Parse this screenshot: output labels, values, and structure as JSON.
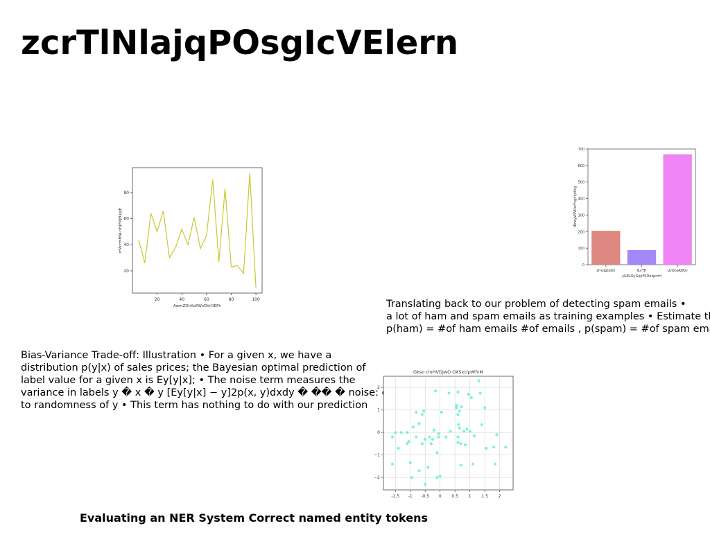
{
  "slide": {
    "title": "zcrTlNlajqPOsgIcVElern",
    "paragraph_right": [
      "Translating back to our problem of detecting spam emails •",
      "a lot of ham and spam emails as training examples • Estimate the",
      "p(ham) = #of ham emails #of emails , p(spam) = #of spam emails"
    ],
    "paragraph_left": [
      "Bias-Variance Trade-off: Illustration • For a given x, we have a",
      "distribution p(y|x) of sales prices; the Bayesian optimal prediction of",
      "label value for a given x is Ey[y|x]; • The noise term measures the",
      "variance in labels y � x � y [Ey[y|x] − y]2p(x, y)dxdy � �� � noise: error",
      "to randomness of y • This term has nothing to do with our prediction"
    ],
    "footer": "Evaluating an NER System Correct named entity tokens"
  },
  "chart_data": [
    {
      "type": "line",
      "title": "",
      "xlabel": "AwmZDhXaPWxDVrOEPh",
      "ylabel": "rrMcrmHNLnHJYMJfLogE",
      "x": [
        5,
        10,
        15,
        20,
        25,
        30,
        35,
        40,
        45,
        50,
        55,
        60,
        65,
        70,
        75,
        80,
        85,
        90,
        95,
        100
      ],
      "series": [
        {
          "values": [
            44,
            26,
            64,
            50,
            66,
            30,
            38,
            52,
            40,
            61,
            37,
            47,
            90,
            27,
            83,
            23,
            24,
            18,
            95,
            7
          ]
        }
      ],
      "xticks": [
        20,
        40,
        60,
        80,
        100
      ],
      "yticks": [
        20,
        40,
        60,
        80
      ],
      "xlim": [
        0,
        105
      ],
      "ylim": [
        3,
        99
      ],
      "grid": false,
      "colors": {
        "line": "#c8c830"
      }
    },
    {
      "type": "bar",
      "title": "",
      "xlabel": "yGELOyGqkFSOozpmH",
      "ylabel": "tBrwyWWDsrFsgxYpKcg",
      "categories": [
        "zf kdgOdm",
        "ILvTH",
        "LUOoaKJlOy"
      ],
      "values": [
        205,
        88,
        668
      ],
      "yticks": [
        0,
        100,
        200,
        300,
        400,
        500,
        600,
        700
      ],
      "ylim": [
        0,
        700
      ],
      "grid": false,
      "colors": {
        "bars": [
          "#dd8880",
          "#a488f8",
          "#f085f5"
        ]
      }
    },
    {
      "type": "scatter",
      "title": "Gkso cioHVDjwO OXSxclpWfvM",
      "xlabel": "",
      "ylabel": "",
      "points": [
        [
          -1.6,
          -0.2
        ],
        [
          -1.6,
          -1.4
        ],
        [
          -1.5,
          0.0
        ],
        [
          -1.4,
          -0.7
        ],
        [
          -1.3,
          0.0
        ],
        [
          -1.1,
          0.0
        ],
        [
          -1.1,
          -0.5
        ],
        [
          -1.05,
          -0.4
        ],
        [
          -1.0,
          -1.35
        ],
        [
          -0.95,
          -2.0
        ],
        [
          -0.9,
          0.25
        ],
        [
          -0.8,
          0.9
        ],
        [
          -0.8,
          -0.2
        ],
        [
          -0.7,
          -1.7
        ],
        [
          -0.7,
          0.4
        ],
        [
          -0.6,
          -0.5
        ],
        [
          -0.6,
          0.8
        ],
        [
          -0.55,
          0.95
        ],
        [
          -0.5,
          -2.3
        ],
        [
          -0.5,
          -0.3
        ],
        [
          -0.4,
          -1.55
        ],
        [
          -0.35,
          -0.2
        ],
        [
          -0.3,
          -0.5
        ],
        [
          -0.25,
          -0.3
        ],
        [
          -0.2,
          0.1
        ],
        [
          -0.15,
          1.85
        ],
        [
          -0.1,
          -0.9
        ],
        [
          -0.1,
          -2.0
        ],
        [
          -0.05,
          -0.05
        ],
        [
          -0.05,
          -0.2
        ],
        [
          0.0,
          -1.95
        ],
        [
          0.05,
          0.9
        ],
        [
          0.2,
          -0.2
        ],
        [
          0.3,
          1.75
        ],
        [
          0.35,
          0.05
        ],
        [
          0.55,
          1.2
        ],
        [
          0.55,
          1.1
        ],
        [
          0.6,
          0.8
        ],
        [
          0.6,
          -0.2
        ],
        [
          0.6,
          -0.45
        ],
        [
          0.6,
          1.8
        ],
        [
          0.62,
          0.35
        ],
        [
          0.65,
          0.95
        ],
        [
          0.65,
          0.2
        ],
        [
          0.7,
          -0.5
        ],
        [
          0.7,
          -1.45
        ],
        [
          0.72,
          1.15
        ],
        [
          0.8,
          0.05
        ],
        [
          0.85,
          -0.55
        ],
        [
          0.9,
          0.15
        ],
        [
          0.95,
          1.7
        ],
        [
          1.0,
          0.05
        ],
        [
          1.05,
          1.55
        ],
        [
          1.1,
          -1.4
        ],
        [
          1.15,
          -0.15
        ],
        [
          1.3,
          2.3
        ],
        [
          1.35,
          1.75
        ],
        [
          1.4,
          0.35
        ],
        [
          1.5,
          1.1
        ],
        [
          1.55,
          -0.7
        ],
        [
          1.8,
          -0.65
        ],
        [
          1.85,
          -1.4
        ],
        [
          1.9,
          -0.1
        ],
        [
          2.2,
          -0.65
        ]
      ],
      "xticks": [
        -1.5,
        -1.0,
        -0.5,
        0.0,
        0.5,
        1.0,
        1.5,
        2.0
      ],
      "ytick_labels": [
        "−2",
        "−1",
        "0",
        "1",
        "2"
      ],
      "yticks": [
        -2,
        -1,
        0,
        1,
        2
      ],
      "xlim": [
        -1.9,
        2.45
      ],
      "ylim": [
        -2.55,
        2.5
      ],
      "grid": true,
      "colors": {
        "points": "#80f0d8"
      }
    }
  ]
}
